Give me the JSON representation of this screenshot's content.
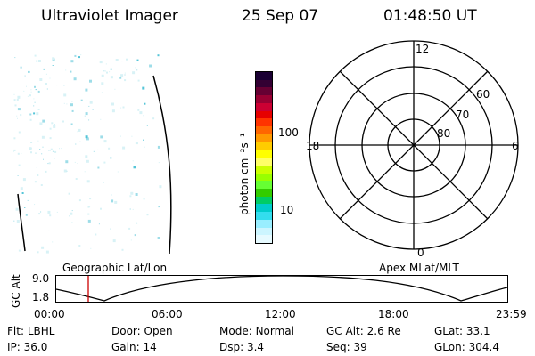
{
  "header": {
    "title": "Ultraviolet Imager",
    "date": "25 Sep 07",
    "time": "01:48:50 UT"
  },
  "colorbar": {
    "unit_label": "photon cm⁻²s⁻¹",
    "ticks": [
      {
        "value": 10,
        "label": "10"
      },
      {
        "value": 100,
        "label": "100"
      }
    ],
    "scale": "log",
    "colors_top_to_bottom": [
      "#1a0033",
      "#330033",
      "#660033",
      "#990033",
      "#cc0033",
      "#e60000",
      "#ff3300",
      "#ff6600",
      "#ff9900",
      "#ffcc00",
      "#ffff00",
      "#ffff66",
      "#ccff00",
      "#99ff00",
      "#66ff33",
      "#33cc00",
      "#00cc66",
      "#00cccc",
      "#33ddee",
      "#99eeff",
      "#ccf5ff",
      "#e6faff"
    ]
  },
  "polar_plot": {
    "mlt_labels": {
      "top": "12",
      "left": "18",
      "right": "6",
      "bottom": "0"
    },
    "lat_labels": [
      "60",
      "70",
      "80"
    ]
  },
  "timeline": {
    "y_axis_label": "GC Alt",
    "y_ticks": [
      "9.0",
      "1.8"
    ],
    "left_title": "Geographic Lat/Lon",
    "right_title": "Apex MLat/MLT",
    "x_ticks": [
      "00:00",
      "06:00",
      "12:00",
      "18:00",
      "23:59"
    ],
    "marker_color": "#cc0000"
  },
  "status": {
    "row1": [
      {
        "key": "Flt:",
        "value": "LBHL"
      },
      {
        "key": "Door:",
        "value": "Open"
      },
      {
        "key": "Mode:",
        "value": "Normal"
      },
      {
        "key": "GC Alt:",
        "value": "2.6 Re"
      },
      {
        "key": "GLat:",
        "value": "33.1"
      }
    ],
    "row2": [
      {
        "key": "IP:",
        "value": "36.0"
      },
      {
        "key": "Gain:",
        "value": "14"
      },
      {
        "key": "Dsp:",
        "value": "3.4"
      },
      {
        "key": "Seq:",
        "value": "39"
      },
      {
        "key": "GLon:",
        "value": "304.4"
      }
    ]
  },
  "image_colors": {
    "speckle_light": "#d8f2f6",
    "speckle_mid": "#9edde8",
    "speckle_dark": "#55c5d8"
  }
}
